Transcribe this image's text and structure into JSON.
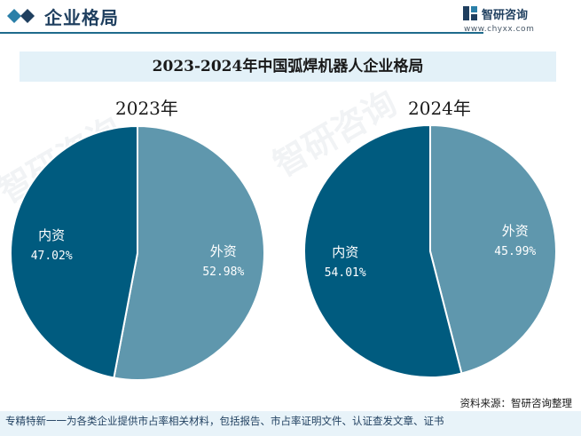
{
  "header": {
    "title": "企业格局"
  },
  "brand": {
    "name": "智研咨询",
    "url": "www.chyxx.com"
  },
  "footer": {
    "note": "专精特新一一为各类企业提供市占率相关材料，包括报告、市占率证明文件、认证查发文章、证书",
    "source": "资料来源：智研咨询整理"
  },
  "watermark": "智研咨询",
  "colors": {
    "domestic": "#005b7f",
    "foreign": "#5f97ad",
    "header_accent": "#1f6b8c"
  },
  "chart_data": {
    "type": "pie",
    "title": "2023-2024年中国弧焊机器人企业格局",
    "charts": [
      {
        "year_label": "2023年",
        "slices": [
          {
            "label": "外资",
            "value": 52.98,
            "display": "52.98%"
          },
          {
            "label": "内资",
            "value": 47.02,
            "display": "47.02%"
          }
        ]
      },
      {
        "year_label": "2024年",
        "slices": [
          {
            "label": "外资",
            "value": 45.99,
            "display": "45.99%"
          },
          {
            "label": "内资",
            "value": 54.01,
            "display": "54.01%"
          }
        ]
      }
    ]
  }
}
